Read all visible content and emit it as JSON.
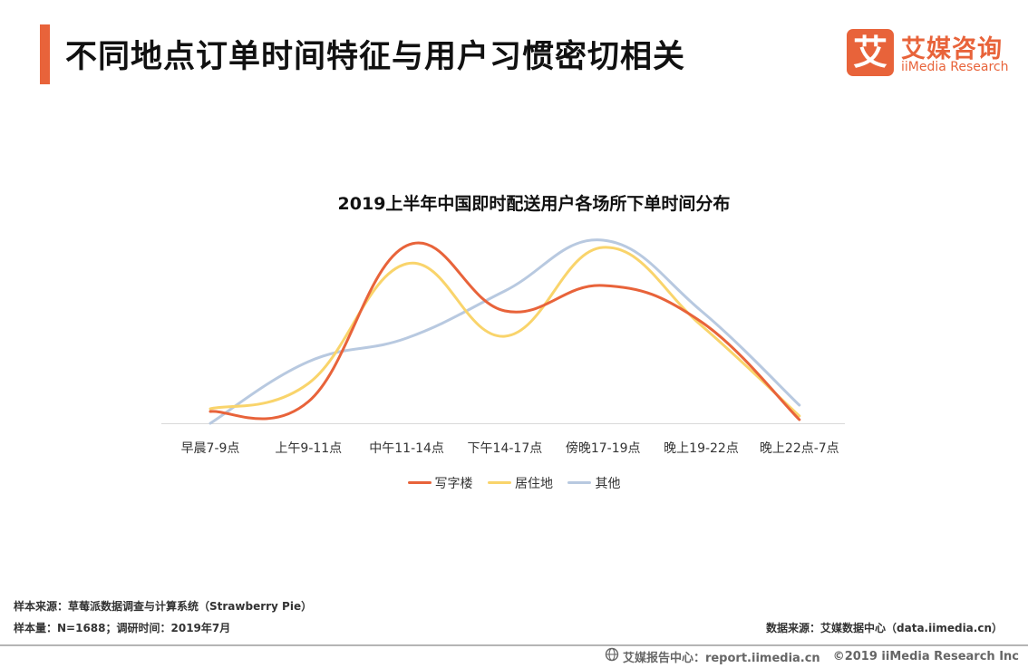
{
  "header": {
    "title": "不同地点订单时间特征与用户习惯密切相关"
  },
  "logo": {
    "mark": "艾",
    "name_cn": "艾媒咨询",
    "name_en": "iiMedia Research"
  },
  "chart_data": {
    "type": "line",
    "title": "2019上半年中国即时配送用户各场所下单时间分布",
    "categories": [
      "早晨7-9点",
      "上午9-11点",
      "中午11-14点",
      "下午14-17点",
      "傍晚17-19点",
      "晚上19-22点",
      "晚上22点-7点"
    ],
    "series": [
      {
        "name": "写字楼",
        "color": "#e8633a",
        "values": [
          6.5,
          12,
          98,
          62,
          76,
          56,
          2
        ]
      },
      {
        "name": "居住地",
        "color": "#f9d46b",
        "values": [
          8,
          22,
          88,
          48,
          97,
          54,
          4
        ]
      },
      {
        "name": "其他",
        "color": "#b8c9e0",
        "values": [
          0,
          34,
          47,
          73,
          101,
          62,
          10
        ]
      }
    ],
    "ylim": [
      0,
      110
    ],
    "grid": false,
    "smooth": true,
    "legend_position": "bottom"
  },
  "footnotes": {
    "sample_source": "样本来源：草莓派数据调查与计算系统（Strawberry Pie）",
    "sample_size": "样本量：N=1688；调研时间：2019年7月",
    "data_source": "数据来源：艾媒数据中心（data.iimedia.cn）"
  },
  "footer": {
    "icon": "globe-icon",
    "report_center": "艾媒报告中心：report.iimedia.cn",
    "copyright": "©2019  iiMedia Research  Inc"
  }
}
